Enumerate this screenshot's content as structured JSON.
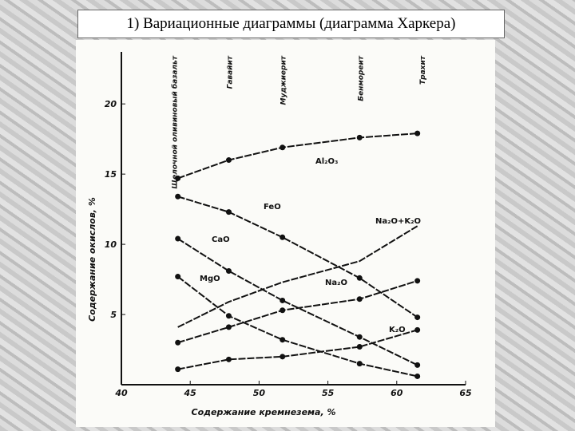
{
  "slide_title": "1) Вариационные диаграммы (диаграмма Харкера)",
  "chart_data": {
    "type": "line",
    "x_label": "Содержание кремнезема, %",
    "y_label": "Содержание окислов, %",
    "x": [
      44.1,
      47.8,
      51.7,
      57.3,
      61.5
    ],
    "series": [
      {
        "name": "Al₂O₃",
        "color": "#111111",
        "values": [
          14.7,
          16.0,
          16.9,
          17.6,
          17.9
        ],
        "markers": true
      },
      {
        "name": "FeO",
        "color": "#111111",
        "values": [
          13.4,
          12.3,
          10.5,
          7.6,
          4.8
        ],
        "markers": true
      },
      {
        "name": "CaO",
        "color": "#111111",
        "values": [
          10.4,
          8.1,
          6.0,
          3.4,
          1.4
        ],
        "markers": true
      },
      {
        "name": "MgO",
        "color": "#111111",
        "values": [
          7.7,
          4.9,
          3.2,
          1.5,
          0.6
        ],
        "markers": true
      },
      {
        "name": "Na₂O+K₂O",
        "color": "#111111",
        "values": [
          4.1,
          5.9,
          7.3,
          8.8,
          11.3
        ],
        "markers": false
      },
      {
        "name": "Na₂O",
        "color": "#111111",
        "values": [
          3.0,
          4.1,
          5.3,
          6.1,
          7.4
        ],
        "markers": true
      },
      {
        "name": "K₂O",
        "color": "#111111",
        "values": [
          1.1,
          1.8,
          2.0,
          2.7,
          3.9
        ],
        "markers": true
      }
    ],
    "annotations": [
      {
        "text": "Щелочной оливиновый базальт",
        "x": 43.8
      },
      {
        "text": "Гавайит",
        "x": 47.8
      },
      {
        "text": "Муджиерит",
        "x": 51.7
      },
      {
        "text": "Бенмореит",
        "x": 57.3
      },
      {
        "text": "Трахит",
        "x": 61.8
      }
    ],
    "xlim": [
      40,
      65
    ],
    "xticks": [
      40,
      45,
      50,
      55,
      60,
      65
    ],
    "ylim": [
      0,
      22
    ],
    "yticks": [
      5,
      10,
      15,
      20
    ]
  }
}
